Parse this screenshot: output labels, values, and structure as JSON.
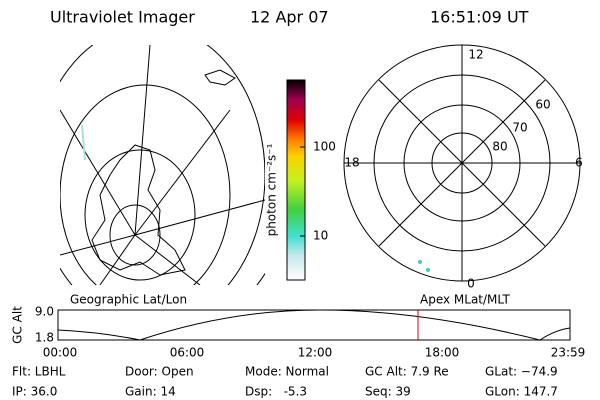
{
  "header": {
    "title": "Ultraviolet Imager",
    "date": "12 Apr 07",
    "time": "16:51:09 UT"
  },
  "colorbar": {
    "label": "photon cm⁻²s⁻¹",
    "ticks": [
      "100",
      "10"
    ]
  },
  "polar": {
    "lat_labels": [
      "60",
      "70",
      "80"
    ],
    "mlt_labels": [
      "12",
      "18",
      "6",
      "0"
    ]
  },
  "panel_labels": {
    "left": "Geographic Lat/Lon",
    "right": "Apex MLat/MLT"
  },
  "orbit": {
    "axis_label": "GC Alt",
    "y_labels": [
      "9.0",
      "1.8"
    ],
    "x_labels": [
      "00:00",
      "06:00",
      "12:00",
      "18:00",
      "23:59"
    ]
  },
  "status": [
    [
      "Flt: LBHL",
      "Door: Open",
      "Mode: Normal",
      "GC Alt: 7.9 Re",
      "GLat: −74.9"
    ],
    [
      "IP: 36.0",
      "Gain: 14",
      "Dsp:   -5.3",
      "Seq: 39",
      "GLon: 147.7"
    ]
  ]
}
